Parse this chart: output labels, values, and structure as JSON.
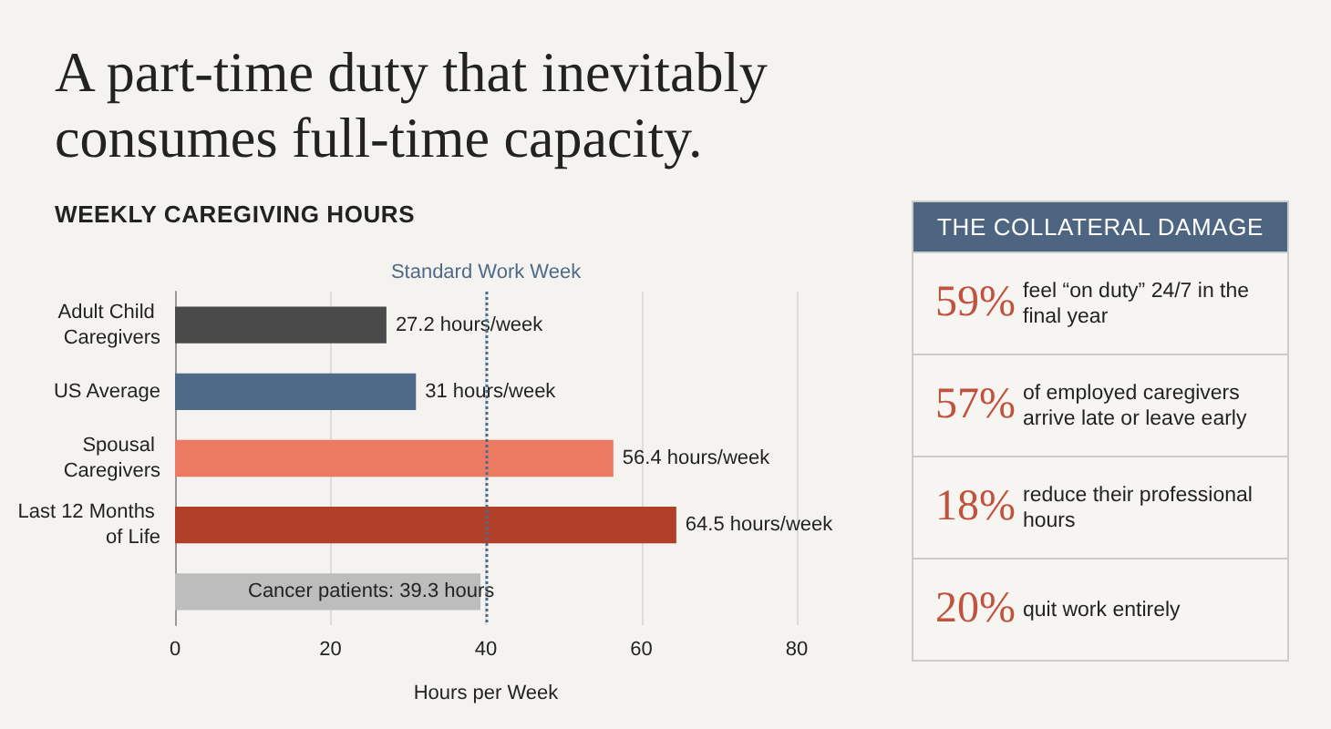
{
  "chart_data": [
    {
      "type": "bar",
      "orientation": "horizontal",
      "title": "A part-time duty that inevitably consumes full-time capacity.",
      "subtitle": "WEEKLY CAREGIVING HOURS",
      "xlabel": "Hours per Week",
      "categories": [
        "Adult Child Caregivers",
        "US Average",
        "Spousal Caregivers",
        "Last 12 Months of Life",
        null
      ],
      "values": [
        27.2,
        31,
        56.4,
        64.5,
        39.3
      ],
      "colors": [
        "#4a4a4a",
        "#4f6a88",
        "#ec7a63",
        "#b0402a",
        "#bdbdbd"
      ],
      "value_labels": [
        "27.2 hours/week",
        "31 hours/week",
        "56.4 hours/week",
        "64.5 hours/week",
        "Cancer patients: 39.3 hours"
      ],
      "xlim": [
        0,
        80
      ],
      "xticks": [
        0,
        20,
        40,
        60,
        80
      ],
      "grid": "x",
      "ref_lines": [
        {
          "axis": "x",
          "value": 40,
          "label": "Standard Work Week",
          "color": "#4f6a88",
          "line_style": "dotted"
        }
      ]
    },
    {
      "type": "other",
      "title": "THE COLLATERAL DAMAGE",
      "color": "#c0533e",
      "annotations": [
        "59% feel “on duty” 24/7 in the final year",
        "57% of employed caregivers arrive late or leave early",
        "18% reduce their professional hours",
        "20% quit work entirely"
      ]
    }
  ]
}
